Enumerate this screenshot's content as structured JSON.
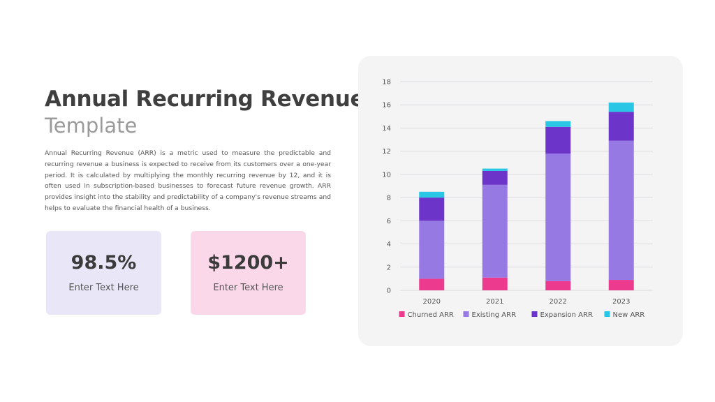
{
  "header": {
    "title": "Annual Recurring Revenue",
    "subtitle": "Template"
  },
  "description": "Annual Recurring Revenue (ARR) is a metric used to measure the predictable and recurring revenue a business is expected to receive from its customers over a one-year period. It is calculated by multiplying the monthly recurring revenue by 12, and it is often used in subscription-based businesses to forecast future revenue growth. ARR provides insight into the stability and predictability of a company's revenue streams and helps to evaluate the financial health of a business.",
  "stats": [
    {
      "value": "98.5%",
      "label": "Enter Text Here",
      "color": "#e9e6f7"
    },
    {
      "value": "$1200+",
      "label": "Enter Text Here",
      "color": "#fbd8e9"
    }
  ],
  "chart_data": {
    "type": "bar",
    "stacked": true,
    "categories": [
      "2020",
      "2021",
      "2022",
      "2023"
    ],
    "series": [
      {
        "name": "Churned ARR",
        "color": "#ec3b8e",
        "values": [
          1.0,
          1.1,
          0.8,
          0.9
        ]
      },
      {
        "name": "Existing ARR",
        "color": "#9679e3",
        "values": [
          5.0,
          8.0,
          11.0,
          12.0
        ]
      },
      {
        "name": "Expansion ARR",
        "color": "#6d34c9",
        "values": [
          2.0,
          1.2,
          2.3,
          2.5
        ]
      },
      {
        "name": "New ARR",
        "color": "#29c6e5",
        "values": [
          0.5,
          0.2,
          0.5,
          0.8
        ]
      }
    ],
    "yticks": [
      "0",
      "2",
      "4",
      "6",
      "8",
      "10",
      "12",
      "14",
      "16",
      "18"
    ],
    "ylim": [
      0,
      18
    ],
    "grid": true,
    "legend_position": "bottom"
  }
}
